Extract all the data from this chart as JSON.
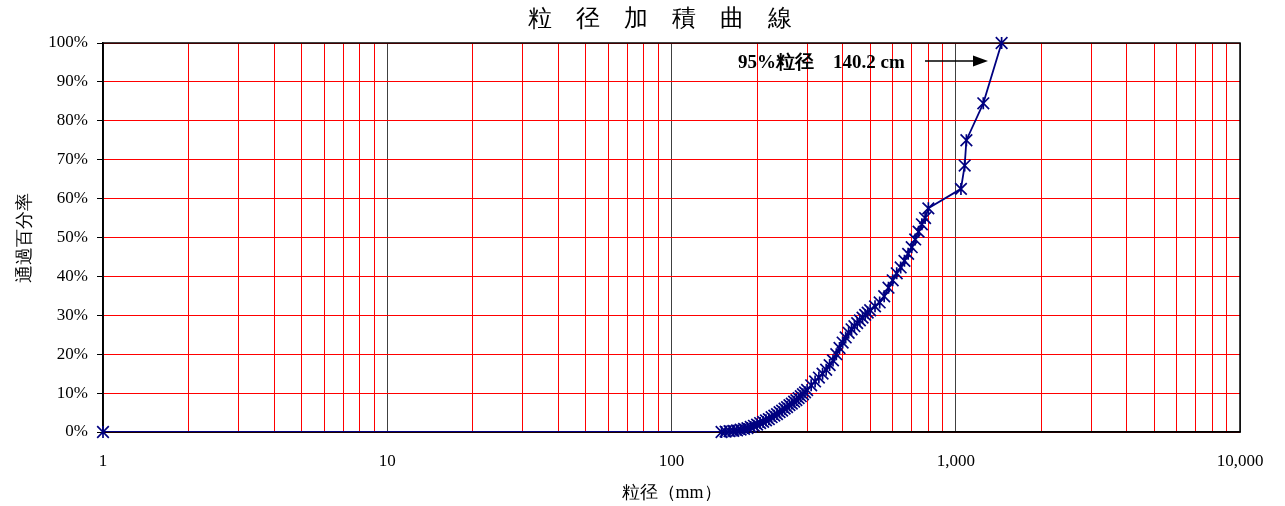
{
  "chart_data": {
    "type": "line",
    "title": "粒　径　加　積　曲　線",
    "xlabel": "粒径（mm）",
    "ylabel": "通過百分率",
    "series": [
      {
        "x": [
          1,
          150,
          155,
          160,
          165,
          170,
          175,
          180,
          185,
          190,
          195,
          200,
          205,
          210,
          215,
          220,
          225,
          230,
          235,
          240,
          245,
          250,
          255,
          260,
          265,
          270,
          275,
          280,
          285,
          290,
          295,
          300,
          310,
          320,
          330,
          340,
          350,
          360,
          370,
          380,
          390,
          400,
          410,
          420,
          430,
          440,
          450,
          460,
          470,
          480,
          490,
          500,
          520,
          540,
          560,
          580,
          600,
          620,
          640,
          660,
          680,
          700,
          720,
          740,
          760,
          780,
          801,
          1043,
          1075,
          1090,
          1250,
          1450
        ],
        "values": [
          0,
          0,
          0.1,
          0.2,
          0.3,
          0.4,
          0.6,
          0.8,
          1.0,
          1.3,
          1.6,
          1.9,
          2.3,
          2.6,
          3.0,
          3.3,
          3.8,
          4.2,
          4.6,
          5.1,
          5.5,
          6.0,
          6.4,
          6.9,
          7.3,
          7.8,
          8.2,
          8.7,
          9.2,
          9.7,
          10.2,
          10.8,
          12.0,
          13.0,
          14.0,
          15.0,
          16.0,
          17.2,
          18.4,
          20.0,
          21.6,
          23.0,
          24.3,
          25.5,
          26.4,
          27.2,
          28.0,
          28.7,
          29.4,
          30.1,
          30.7,
          31.3,
          32.3,
          33.3,
          34.9,
          37.1,
          39.0,
          40.8,
          42.3,
          44.0,
          45.8,
          47.5,
          49.5,
          51.5,
          53.4,
          55.0,
          57.5,
          62.5,
          68.5,
          75,
          84.5,
          100
        ],
        "color": "#000080"
      }
    ],
    "marker": "star",
    "log": "x",
    "grid": true,
    "xlim": [
      1,
      10000
    ],
    "xticks": [
      1,
      {
        "value": 2,
        "label": null
      },
      {
        "value": 3,
        "label": null
      },
      {
        "value": 4,
        "label": null
      },
      {
        "value": 5,
        "label": null
      },
      {
        "value": 6,
        "label": null
      },
      {
        "value": 7,
        "label": null
      },
      {
        "value": 8,
        "label": null
      },
      {
        "value": 9,
        "label": null
      },
      10,
      {
        "value": 20,
        "label": null
      },
      {
        "value": 30,
        "label": null
      },
      {
        "value": 40,
        "label": null
      },
      {
        "value": 50,
        "label": null
      },
      {
        "value": 60,
        "label": null
      },
      {
        "value": 70,
        "label": null
      },
      {
        "value": 80,
        "label": null
      },
      {
        "value": 90,
        "label": null
      },
      100,
      {
        "value": 200,
        "label": null
      },
      {
        "value": 300,
        "label": null
      },
      {
        "value": 400,
        "label": null
      },
      {
        "value": 500,
        "label": null
      },
      {
        "value": 600,
        "label": null
      },
      {
        "value": 700,
        "label": null
      },
      {
        "value": 800,
        "label": null
      },
      {
        "value": 900,
        "label": null
      },
      {
        "value": 1000,
        "label": "1,000"
      },
      {
        "value": 2000,
        "label": null
      },
      {
        "value": 3000,
        "label": null
      },
      {
        "value": 4000,
        "label": null
      },
      {
        "value": 5000,
        "label": null
      },
      {
        "value": 6000,
        "label": null
      },
      {
        "value": 7000,
        "label": null
      },
      {
        "value": 8000,
        "label": null
      },
      {
        "value": 9000,
        "label": null
      },
      {
        "value": 10000,
        "label": "10,000"
      }
    ],
    "ylim": [
      0,
      100
    ],
    "yticks": [
      {
        "value": 0,
        "label": "0%"
      },
      {
        "value": 10,
        "label": "10%"
      },
      {
        "value": 20,
        "label": "20%"
      },
      {
        "value": 30,
        "label": "30%"
      },
      {
        "value": 40,
        "label": "40%"
      },
      {
        "value": 50,
        "label": "50%"
      },
      {
        "value": 60,
        "label": "60%"
      },
      {
        "value": 70,
        "label": "70%"
      },
      {
        "value": 80,
        "label": "80%"
      },
      {
        "value": 90,
        "label": "90%"
      },
      {
        "value": 100,
        "label": "100%"
      }
    ],
    "annotations": [
      "95%粒径　140.2 cm"
    ]
  }
}
